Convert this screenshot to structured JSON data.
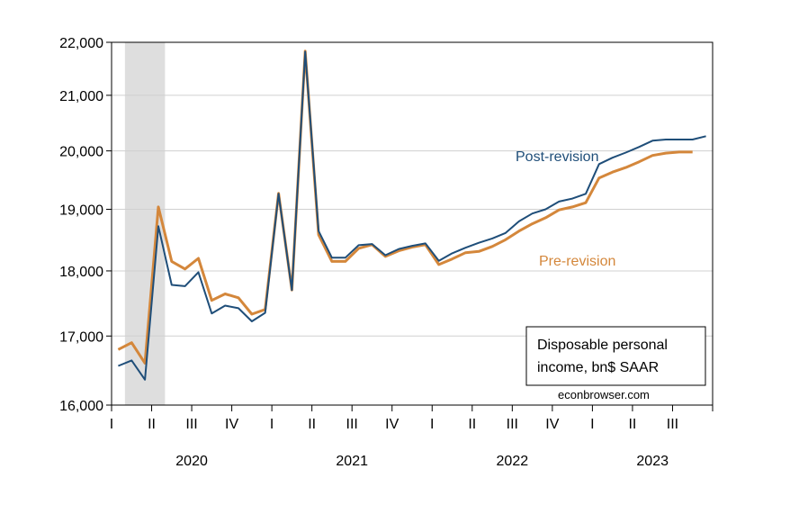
{
  "chart_data": {
    "type": "line",
    "x": [
      "2020-01",
      "2020-02",
      "2020-03",
      "2020-04",
      "2020-05",
      "2020-06",
      "2020-07",
      "2020-08",
      "2020-09",
      "2020-10",
      "2020-11",
      "2020-12",
      "2021-01",
      "2021-02",
      "2021-03",
      "2021-04",
      "2021-05",
      "2021-06",
      "2021-07",
      "2021-08",
      "2021-09",
      "2021-10",
      "2021-11",
      "2021-12",
      "2022-01",
      "2022-02",
      "2022-03",
      "2022-04",
      "2022-05",
      "2022-06",
      "2022-07",
      "2022-08",
      "2022-09",
      "2022-10",
      "2022-11",
      "2022-12",
      "2023-01",
      "2023-02",
      "2023-03",
      "2023-04",
      "2023-05",
      "2023-06",
      "2023-07",
      "2023-08",
      "2023-09"
    ],
    "series": [
      {
        "name": "Post-revision",
        "color": "#1f4e79",
        "values": [
          16560,
          16640,
          16360,
          18720,
          17780,
          17760,
          17980,
          17340,
          17460,
          17420,
          17220,
          17350,
          19260,
          17700,
          21820,
          18640,
          18210,
          18210,
          18410,
          18430,
          18250,
          18350,
          18400,
          18440,
          18160,
          18280,
          18370,
          18450,
          18520,
          18610,
          18800,
          18930,
          19000,
          19130,
          19180,
          19260,
          19770,
          19880,
          19970,
          20070,
          20180,
          20200,
          20200,
          20200,
          20260
        ]
      },
      {
        "name": "Pre-revision",
        "color": "#d4873b",
        "values": [
          16800,
          16900,
          16600,
          19040,
          18150,
          18030,
          18200,
          17540,
          17640,
          17580,
          17330,
          17400,
          19270,
          17700,
          21830,
          18580,
          18150,
          18150,
          18360,
          18420,
          18230,
          18320,
          18380,
          18420,
          18100,
          18190,
          18290,
          18310,
          18390,
          18500,
          18640,
          18760,
          18860,
          18990,
          19040,
          19110,
          19530,
          19630,
          19710,
          19810,
          19920,
          19960,
          19980,
          19980,
          null
        ]
      }
    ],
    "ylim": [
      16000,
      22000
    ],
    "log_scale": true,
    "y_ticks": [
      16000,
      17000,
      18000,
      19000,
      20000,
      21000,
      22000
    ],
    "y_tick_labels": [
      "16,000",
      "17,000",
      "18,000",
      "19,000",
      "20,000",
      "21,000",
      "22,000"
    ],
    "x_quarter_labels": [
      "I",
      "II",
      "III",
      "IV",
      "I",
      "II",
      "III",
      "IV",
      "I",
      "II",
      "III",
      "IV",
      "I",
      "II",
      "III"
    ],
    "year_labels": [
      "2020",
      "2021",
      "2022",
      "2023"
    ],
    "recession_shading": {
      "start": "2020-02",
      "end": "2020-04",
      "color": "#dedede"
    },
    "annotations": {
      "post_label": "Post-revision",
      "pre_label": "Pre-revision",
      "box_line1": "Disposable personal",
      "box_line2": "income, bn$ SAAR",
      "source": "econbrowser.com"
    },
    "grid": true,
    "legend": "none"
  }
}
